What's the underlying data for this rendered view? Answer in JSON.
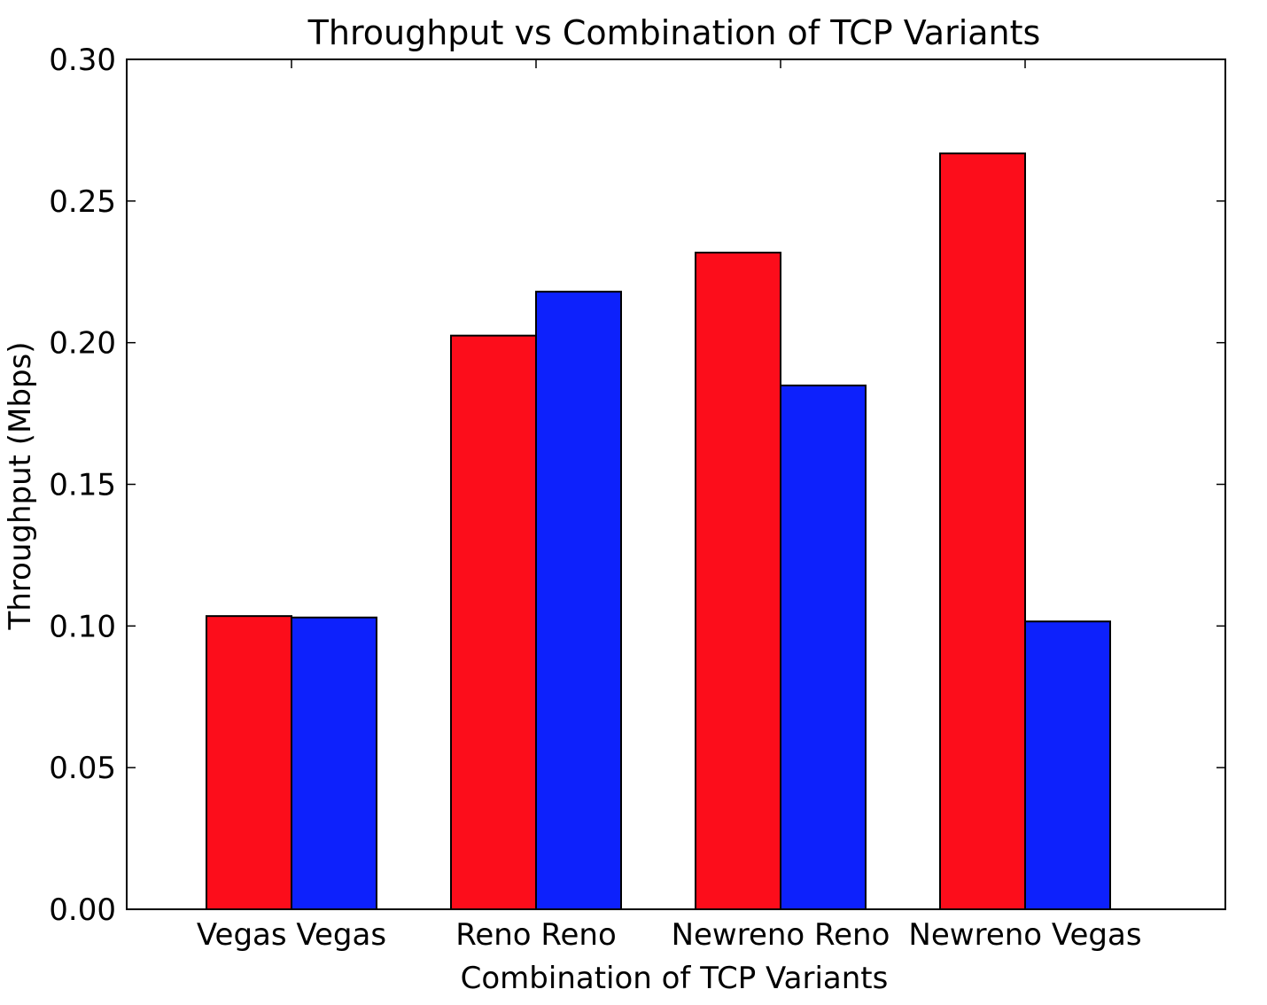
{
  "chart_data": {
    "type": "bar",
    "title": "Throughput vs Combination of TCP Variants",
    "xlabel": "Combination of TCP Variants",
    "ylabel": "Throughput (Mbps)",
    "categories": [
      "Vegas Vegas",
      "Reno Reno",
      "Newreno Reno",
      "Newreno Vegas"
    ],
    "series": [
      {
        "values": [
          0.1035,
          0.2025,
          0.2318,
          0.2668
        ],
        "color": "#fc0d1b"
      },
      {
        "values": [
          0.103,
          0.218,
          0.1849,
          0.1016
        ],
        "color": "#0d21fc"
      }
    ],
    "ylim": [
      0,
      0.3
    ],
    "yticks": [
      0.0,
      0.05,
      0.1,
      0.15,
      0.2,
      0.25,
      0.3
    ],
    "ytick_labels": [
      "0.00",
      "0.05",
      "0.10",
      "0.15",
      "0.20",
      "0.25",
      "0.30"
    ],
    "grid": false,
    "legend": "none"
  }
}
